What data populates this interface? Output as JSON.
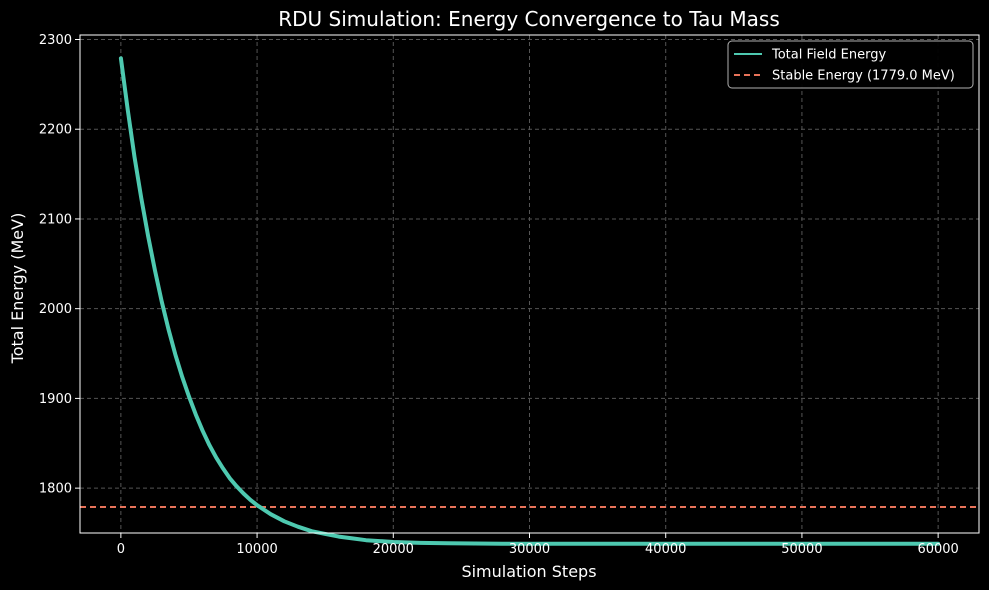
{
  "chart_data": {
    "type": "line",
    "title": "RDU Simulation: Energy Convergence to Tau Mass",
    "xlabel": "Simulation Steps",
    "ylabel": "Total Energy (MeV)",
    "xlim": [
      -3000,
      63000
    ],
    "ylim": [
      1750,
      2305
    ],
    "xticks": [
      0,
      10000,
      20000,
      30000,
      40000,
      50000,
      60000
    ],
    "yticks": [
      1800,
      1900,
      2000,
      2100,
      2200,
      2300
    ],
    "grid": true,
    "legend_position": "top-right",
    "series": [
      {
        "name": "Total Field Energy",
        "style": "solid",
        "color": "#4ec9b0",
        "x": [
          0,
          500,
          1000,
          1500,
          2000,
          2500,
          3000,
          3500,
          4000,
          4500,
          5000,
          5500,
          6000,
          6500,
          7000,
          7500,
          8000,
          8500,
          9000,
          9500,
          10000,
          11000,
          12000,
          13000,
          14000,
          15000,
          16000,
          17000,
          18000,
          19000,
          20000,
          22000,
          24000,
          26000,
          28000,
          30000,
          35000,
          40000,
          45000,
          50000,
          55000,
          60000
        ],
        "y": [
          2279,
          2222,
          2169,
          2123,
          2081,
          2043,
          2008,
          1977,
          1949,
          1924,
          1902,
          1882,
          1864,
          1848,
          1834,
          1822,
          1811,
          1802,
          1794,
          1787,
          1781,
          1771,
          1763,
          1757,
          1752,
          1749,
          1746,
          1744,
          1742,
          1741,
          1740,
          1739,
          1738.5,
          1738.3,
          1738.1,
          1738,
          1738,
          1738,
          1738,
          1738,
          1738,
          1738
        ]
      },
      {
        "name": "Stable Energy (1779.0 MeV)",
        "style": "dashed",
        "color": "#e8735a",
        "y_constant": 1779.0
      }
    ]
  }
}
